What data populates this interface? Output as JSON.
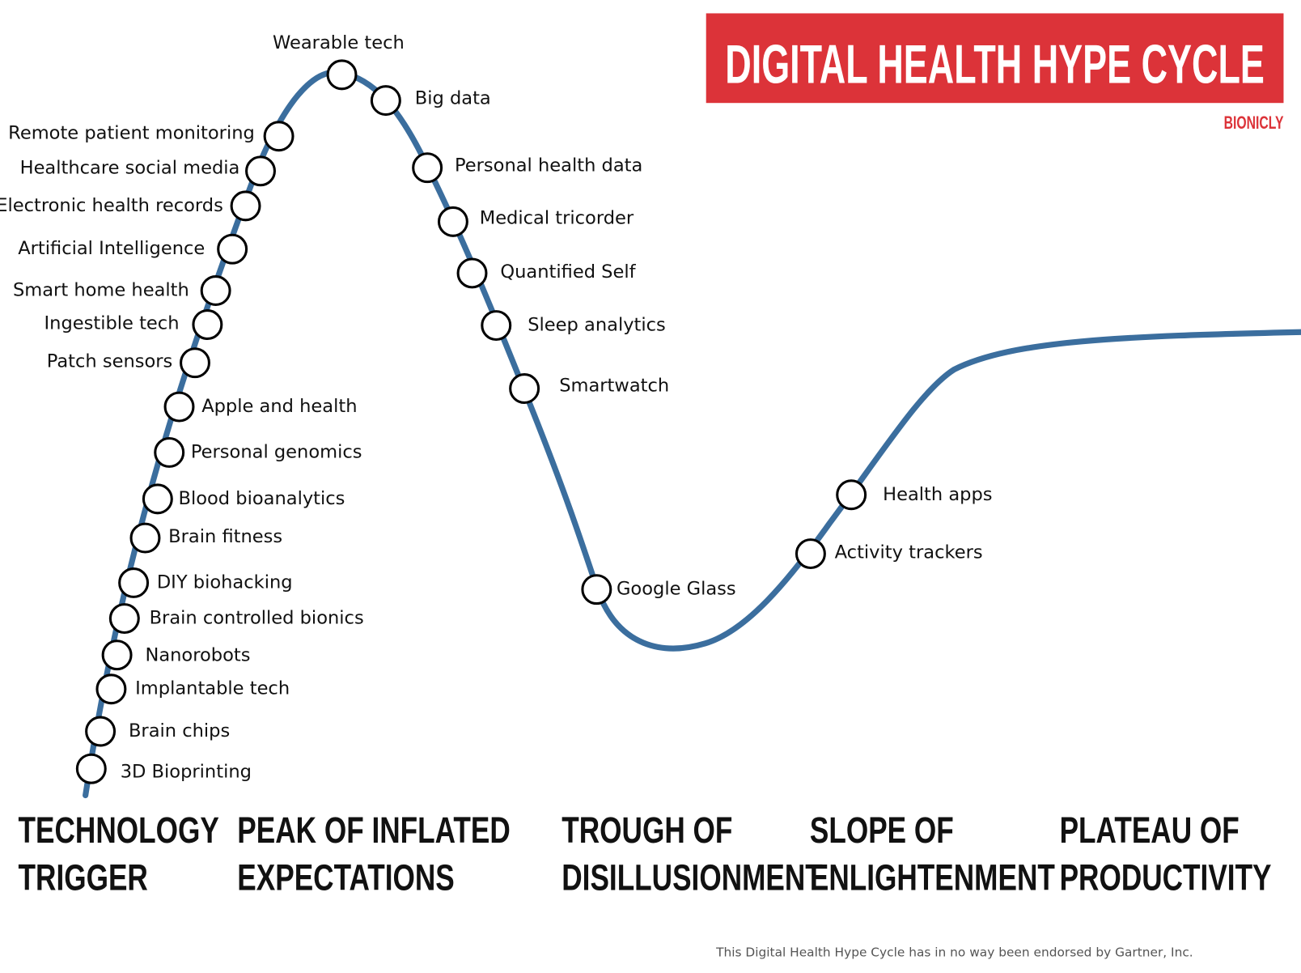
{
  "header": {
    "title": "DIGITAL HEALTH HYPE CYCLE",
    "brand": "BIONICLY"
  },
  "nodes": [
    {
      "label": "Wearable tech"
    },
    {
      "label": "Big data"
    },
    {
      "label": "Remote patient monitoring"
    },
    {
      "label": "Healthcare social media"
    },
    {
      "label": "Electronic health records"
    },
    {
      "label": "Artificial Intelligence"
    },
    {
      "label": "Smart home health"
    },
    {
      "label": "Ingestible tech"
    },
    {
      "label": "Patch sensors"
    },
    {
      "label": "Apple and health"
    },
    {
      "label": "Personal genomics"
    },
    {
      "label": "Blood bioanalytics"
    },
    {
      "label": "Brain fitness"
    },
    {
      "label": "DIY biohacking"
    },
    {
      "label": "Brain controlled bionics"
    },
    {
      "label": "Nanorobots"
    },
    {
      "label": "Implantable tech"
    },
    {
      "label": "Brain chips"
    },
    {
      "label": "3D Bioprinting"
    },
    {
      "label": "Personal health data"
    },
    {
      "label": "Medical tricorder"
    },
    {
      "label": "Quantified Self"
    },
    {
      "label": "Sleep analytics"
    },
    {
      "label": "Smartwatch"
    },
    {
      "label": "Google Glass"
    },
    {
      "label": "Health apps"
    },
    {
      "label": "Activity trackers"
    }
  ],
  "phases": [
    {
      "lines": [
        "TECHNOLOGY",
        "TRIGGER"
      ]
    },
    {
      "lines": [
        "PEAK OF INFLATED",
        "EXPECTATIONS"
      ]
    },
    {
      "lines": [
        "TROUGH OF",
        "DISILLUSIONMENT"
      ]
    },
    {
      "lines": [
        "SLOPE OF",
        "ENLIGHTENMENT"
      ]
    },
    {
      "lines": [
        "PLATEAU OF",
        "PRODUCTIVITY"
      ]
    }
  ],
  "footer": "This Digital Health Hype Cycle has in no way been endorsed by Gartner, Inc."
}
